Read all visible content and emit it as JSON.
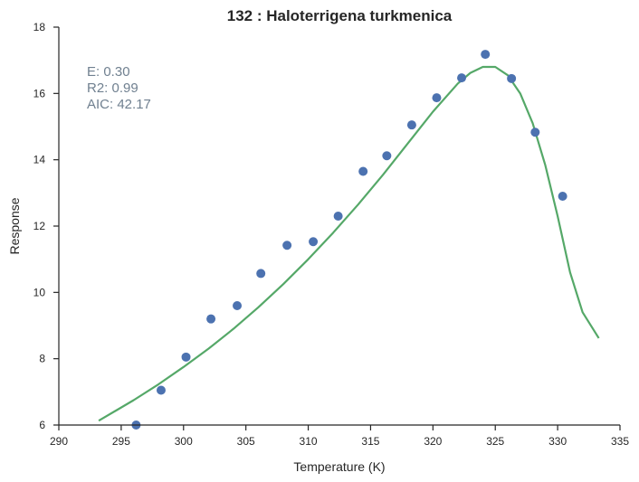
{
  "chart_data": {
    "type": "scatter",
    "title": "132 : Haloterrigena turkmenica",
    "xlabel": "Temperature (K)",
    "ylabel": "Response",
    "xlim": [
      290,
      335
    ],
    "ylim": [
      6,
      18
    ],
    "xticks": [
      290,
      295,
      300,
      305,
      310,
      315,
      320,
      325,
      330,
      335
    ],
    "yticks": [
      6,
      8,
      10,
      12,
      14,
      16,
      18
    ],
    "grid": false,
    "annotations": [
      "E:  0.30",
      "R2:  0.99",
      "AIC: 42.17"
    ],
    "series": [
      {
        "type": "scatter",
        "color": "#4c72b0",
        "x": [
          296.2,
          298.2,
          300.2,
          302.2,
          304.3,
          306.2,
          308.3,
          310.4,
          312.4,
          314.4,
          316.3,
          318.3,
          320.3,
          322.3,
          324.2,
          326.3,
          328.2,
          330.4
        ],
        "y": [
          6.0,
          7.05,
          8.05,
          9.2,
          9.6,
          10.57,
          11.42,
          11.53,
          12.3,
          13.65,
          14.12,
          15.05,
          15.87,
          16.47,
          17.18,
          16.45,
          14.83,
          12.9
        ]
      },
      {
        "type": "line",
        "color": "#55a868",
        "x": [
          293.2,
          296,
          298,
          300,
          302,
          304,
          306,
          308,
          310,
          312,
          314,
          316,
          318,
          320,
          322,
          323,
          324,
          325,
          326,
          327,
          328,
          329,
          330,
          331,
          332,
          333.3
        ],
        "y": [
          6.13,
          6.75,
          7.23,
          7.75,
          8.3,
          8.9,
          9.55,
          10.25,
          11.0,
          11.8,
          12.65,
          13.55,
          14.5,
          15.45,
          16.3,
          16.62,
          16.8,
          16.8,
          16.55,
          16.0,
          15.1,
          13.85,
          12.3,
          10.6,
          9.4,
          8.62
        ]
      }
    ]
  }
}
